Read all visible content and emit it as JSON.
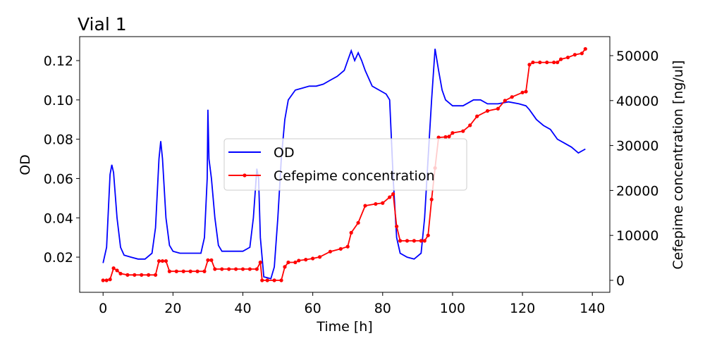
{
  "chart_data": {
    "type": "line",
    "title": "Vial 1",
    "x_label": "Time [h]",
    "y_label": "OD",
    "y2_label": "Cefepime concentration [ng/ul]",
    "xlim": [
      -6.7,
      145
    ],
    "xticks": [
      0,
      20,
      40,
      60,
      80,
      100,
      120,
      140
    ],
    "ylim": [
      0.0021,
      0.1322
    ],
    "yticks": [
      0.02,
      0.04,
      0.06,
      0.08,
      {
        "value": 0.1,
        "label": "0.10"
      },
      0.12
    ],
    "y2lim": [
      -2665,
      54232
    ],
    "y2ticks": [
      0,
      10000,
      20000,
      30000,
      40000,
      50000
    ],
    "legend": "center",
    "series": [
      {
        "name": "OD",
        "color": "#0000ff",
        "axis": "y",
        "marker": false,
        "x": [
          0,
          1,
          2,
          2.5,
          3,
          4,
          5,
          6,
          8,
          10,
          12,
          14,
          15,
          16,
          16.5,
          17,
          18,
          19,
          20,
          22,
          25,
          28,
          29,
          29.8,
          30,
          30.3,
          31,
          32,
          33,
          34,
          37,
          40,
          42,
          43,
          44,
          44.5,
          45,
          46,
          48,
          49,
          50,
          51,
          52,
          53,
          55,
          57,
          59,
          61,
          63,
          65,
          67,
          69,
          70,
          71,
          72,
          73,
          74,
          75,
          77,
          79,
          81,
          82,
          83,
          84,
          85,
          87,
          89,
          91,
          92,
          93,
          94,
          95,
          96,
          97,
          98,
          100,
          103,
          106,
          108,
          110,
          113,
          116,
          119,
          121,
          122,
          124,
          126,
          128,
          130,
          132,
          134,
          136,
          137,
          138
        ],
        "values": [
          0.017,
          0.025,
          0.062,
          0.067,
          0.063,
          0.04,
          0.025,
          0.021,
          0.02,
          0.019,
          0.019,
          0.022,
          0.035,
          0.07,
          0.079,
          0.07,
          0.04,
          0.026,
          0.023,
          0.022,
          0.022,
          0.022,
          0.03,
          0.06,
          0.095,
          0.07,
          0.06,
          0.04,
          0.026,
          0.023,
          0.023,
          0.023,
          0.025,
          0.04,
          0.065,
          0.06,
          0.03,
          0.01,
          0.009,
          0.015,
          0.04,
          0.07,
          0.09,
          0.1,
          0.105,
          0.106,
          0.107,
          0.107,
          0.108,
          0.11,
          0.112,
          0.115,
          0.12,
          0.125,
          0.12,
          0.124,
          0.12,
          0.115,
          0.107,
          0.105,
          0.103,
          0.1,
          0.06,
          0.03,
          0.022,
          0.02,
          0.019,
          0.022,
          0.04,
          0.07,
          0.1,
          0.126,
          0.115,
          0.105,
          0.1,
          0.097,
          0.097,
          0.1,
          0.1,
          0.098,
          0.098,
          0.099,
          0.098,
          0.097,
          0.095,
          0.09,
          0.087,
          0.085,
          0.08,
          0.078,
          0.076,
          0.073,
          0.074,
          0.075
        ]
      },
      {
        "name": "Cefepime concentration",
        "color": "#ff0000",
        "axis": "y2",
        "marker": true,
        "x": [
          0,
          1,
          2,
          3,
          4,
          5,
          7,
          9,
          11,
          13,
          15,
          16,
          17,
          18,
          19,
          21,
          23,
          25,
          27,
          29,
          30,
          31,
          32,
          34,
          36,
          38,
          40,
          42,
          44,
          45,
          45.5,
          47,
          49,
          51,
          52,
          53,
          55,
          56,
          58,
          60,
          62,
          65,
          68,
          70,
          71,
          73,
          75,
          78,
          80,
          82,
          83,
          84,
          85,
          87,
          89,
          91,
          92,
          93,
          94,
          95,
          96,
          98,
          99,
          100,
          103,
          105,
          107,
          110,
          113,
          115,
          117,
          120,
          121,
          122,
          123,
          125,
          127,
          129,
          130,
          131,
          133,
          135,
          137,
          138
        ],
        "values": [
          0,
          0,
          200,
          2700,
          2200,
          1500,
          1200,
          1200,
          1200,
          1200,
          1200,
          4300,
          4300,
          4300,
          2000,
          2000,
          2000,
          2000,
          2000,
          2000,
          4500,
          4500,
          2500,
          2500,
          2500,
          2500,
          2500,
          2500,
          2500,
          4000,
          0,
          0,
          0,
          0,
          3000,
          4000,
          4000,
          4400,
          4600,
          4860,
          5200,
          6400,
          7000,
          7500,
          10600,
          12800,
          16600,
          17000,
          17200,
          18500,
          19200,
          12000,
          8800,
          8800,
          8800,
          8800,
          8800,
          10000,
          18000,
          25000,
          31800,
          31900,
          32000,
          32800,
          33200,
          34500,
          36500,
          37700,
          38200,
          40000,
          40800,
          41800,
          42000,
          48000,
          48500,
          48500,
          48500,
          48500,
          48500,
          49200,
          49600,
          50200,
          50500,
          51500
        ]
      }
    ]
  }
}
